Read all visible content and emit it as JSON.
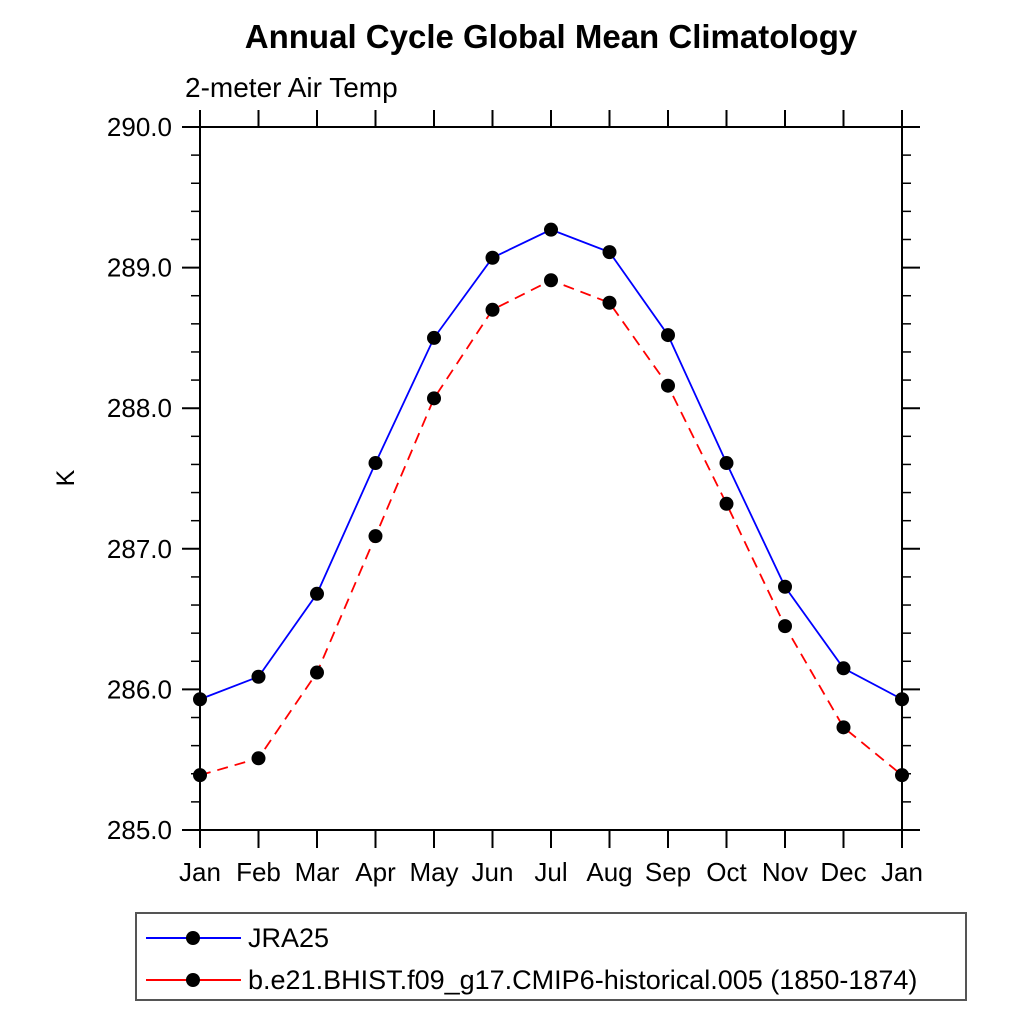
{
  "page": {
    "background": "#ffffff"
  },
  "chart_data": {
    "type": "line",
    "title": "Annual Cycle Global Mean Climatology",
    "subtitle": "2-meter Air Temp",
    "ylabel": "K",
    "xlabel": "",
    "categories": [
      "Jan",
      "Feb",
      "Mar",
      "Apr",
      "May",
      "Jun",
      "Jul",
      "Aug",
      "Sep",
      "Oct",
      "Nov",
      "Dec",
      "Jan"
    ],
    "ylim": [
      285.0,
      290.0
    ],
    "ytick_major_step": 1.0,
    "ytick_minor_step": 0.2,
    "ytick_labels": [
      "285.0",
      "286.0",
      "287.0",
      "288.0",
      "289.0",
      "290.0"
    ],
    "grid": false,
    "frame_color": "#000000",
    "marker": "filled-circle",
    "legend_position": "below-plot-boxed",
    "series": [
      {
        "name": "JRA25",
        "color": "#0000ff",
        "line_style": "solid",
        "dash": "none",
        "marker_color": "#000000",
        "values": [
          285.93,
          286.09,
          286.68,
          287.61,
          288.5,
          289.07,
          289.27,
          289.11,
          288.52,
          287.61,
          286.73,
          286.15,
          285.93
        ]
      },
      {
        "name": "b.e21.BHIST.f09_g17.CMIP6-historical.005 (1850-1874)",
        "color": "#ff0000",
        "line_style": "dashed",
        "dash": "11,7",
        "marker_color": "#000000",
        "values": [
          285.39,
          285.51,
          286.12,
          287.09,
          288.07,
          288.7,
          288.91,
          288.75,
          288.16,
          287.32,
          286.45,
          285.73,
          285.39
        ]
      }
    ]
  }
}
